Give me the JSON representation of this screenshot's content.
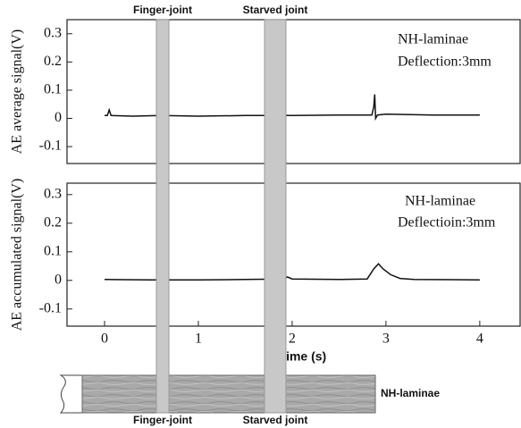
{
  "chart_data": [
    {
      "type": "line",
      "ylabel": "AE average signal(V)",
      "annotations": [
        "NH-laminae",
        "Deflection:3mm"
      ],
      "xlim": [
        -0.4,
        4.43
      ],
      "ylim": [
        -0.16,
        0.35
      ],
      "yticks": [
        0.3,
        0.2,
        0.1,
        0,
        -0.1
      ],
      "series": [
        {
          "color": "#111111",
          "x": [
            0,
            0.03,
            0.05,
            0.07,
            0.3,
            0.6,
            1,
            1.5,
            2,
            2.5,
            2.85,
            2.87,
            2.88,
            2.89,
            2.91,
            3,
            3.5,
            4
          ],
          "values": [
            0.01,
            0.01,
            0.03,
            0.01,
            0.008,
            0.01,
            0.008,
            0.01,
            0.01,
            0.012,
            0.012,
            0.04,
            0.085,
            0.0,
            0.012,
            0.015,
            0.012,
            0.012
          ]
        }
      ]
    },
    {
      "type": "line",
      "ylabel": "AE accumulated signal(V)",
      "xlabel": "Time (s)",
      "annotations": [
        "NH-laminae",
        "Deflectioin:3mm"
      ],
      "xlim": [
        -0.4,
        4.43
      ],
      "ylim": [
        -0.16,
        0.34
      ],
      "xticks": [
        0,
        1,
        2,
        3,
        4
      ],
      "yticks": [
        0.3,
        0.2,
        0.1,
        0,
        -0.1
      ],
      "series": [
        {
          "color": "#111111",
          "x": [
            0,
            0.5,
            1,
            1.5,
            1.9,
            1.95,
            2.0,
            2.5,
            2.8,
            2.87,
            2.92,
            2.97,
            3.05,
            3.15,
            3.3,
            4
          ],
          "values": [
            0.003,
            0.002,
            0.002,
            0.003,
            0.005,
            0.012,
            0.005,
            0.003,
            0.005,
            0.04,
            0.058,
            0.04,
            0.02,
            0.007,
            0.003,
            0.002
          ]
        }
      ]
    }
  ],
  "joints": {
    "top_labels": [
      "Finger-joint",
      "Starved joint"
    ],
    "bottom_labels": [
      "Finger-joint",
      "Starved joint"
    ]
  },
  "specimen_label": "NH-laminae"
}
